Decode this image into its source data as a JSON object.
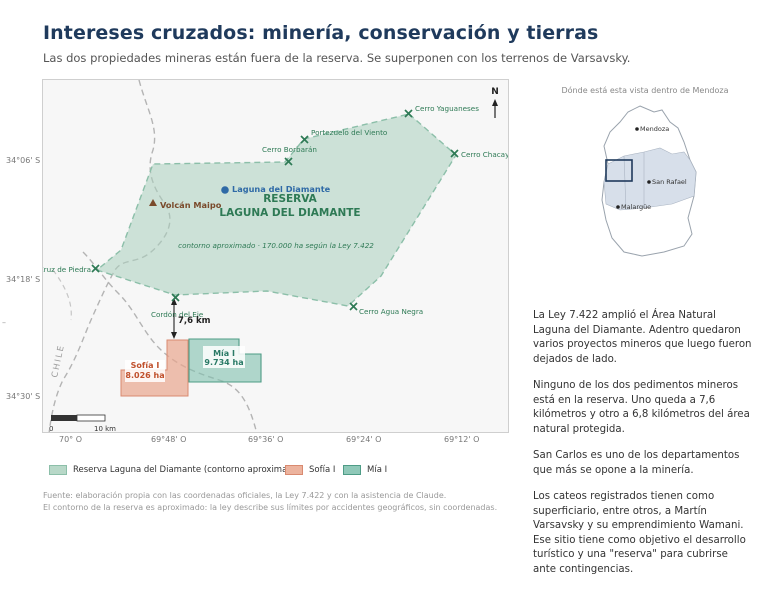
{
  "header": {
    "title": "Intereses cruzados: minería, conservación y tierras",
    "subtitle": "Las dos propiedades mineras están fuera de la reserva. Se superponen con los terrenos de Varsavsky."
  },
  "map": {
    "north": "N",
    "lat_labels": [
      "34°06' S",
      "34°18' S",
      "34°30' S"
    ],
    "lon_labels": [
      "70° O",
      "69°48' O",
      "69°36' O",
      "69°24' O",
      "69°12' O"
    ],
    "reserve_label_1": "RESERVA",
    "reserve_label_2": "LAGUNA DEL DIAMANTE",
    "reserve_note": "contorno aproximado · 170.000 ha según la Ley 7.422",
    "laguna": "Laguna del Diamante",
    "volcano": "Volcán Maipo",
    "peaks": {
      "yaguaneses": "Cerro Yaguaneses",
      "viento": "Portezuelo del Viento",
      "borbaran": "Cerro Borbarán",
      "chacay": "Cerro Chacay",
      "piedra": "Portezuelo Cruz de Piedra",
      "agua_negra": "Cerro Agua Negra",
      "cordon": "Cordón del Eje"
    },
    "distance": "7,6 km",
    "sofia_name": "Sofía I",
    "sofia_area": "8.026 ha",
    "mia_name": "Mía I",
    "mia_area": "9.734 ha",
    "chile": "CHILE",
    "scale_0": "0",
    "scale_10": "10 km",
    "colors": {
      "reserve": "#a9cfbe",
      "sofia": "#e8a58d",
      "mia": "#7fbfad",
      "peak": "#2e7a55",
      "title": "#1f3a5c"
    }
  },
  "legend": {
    "reserve": "Reserva Laguna del Diamante (contorno aproximado)",
    "sofia": "Sofía I",
    "mia": "Mía I"
  },
  "source": {
    "line1": "Fuente: elaboración propia con las coordenadas oficiales, la Ley 7.422 y con la asistencia de Claude.",
    "line2": "El contorno de la reserva es aproximado: la ley describe sus límites por accidentes geográficos, sin coordenadas."
  },
  "inset": {
    "title": "Dónde está esta vista dentro de Mendoza",
    "mendoza": "Mendoza",
    "san_rafael": "San Rafael",
    "malargue": "Malargüe"
  },
  "prose": {
    "p1": "La Ley 7.422 amplió el Área Natural Laguna del Diamante. Adentro quedaron varios proyectos mineros que luego fueron dejados de lado.",
    "p2": "Ninguno de los dos pedimentos mineros está en la reserva. Uno queda a 7,6 kilómetros y otro a 6,8 kilómetros del área natural protegida.",
    "p3": "San Carlos es uno de los departamentos que más se opone a la minería.",
    "p4": "Los cateos registrados tienen como superficiario, entre otros, a Martín Varsavsky y su emprendimiento Wamani. Ese sitio tiene como objetivo el desarrollo turístico y una \"reserva\" para cubrirse ante contingencias."
  }
}
